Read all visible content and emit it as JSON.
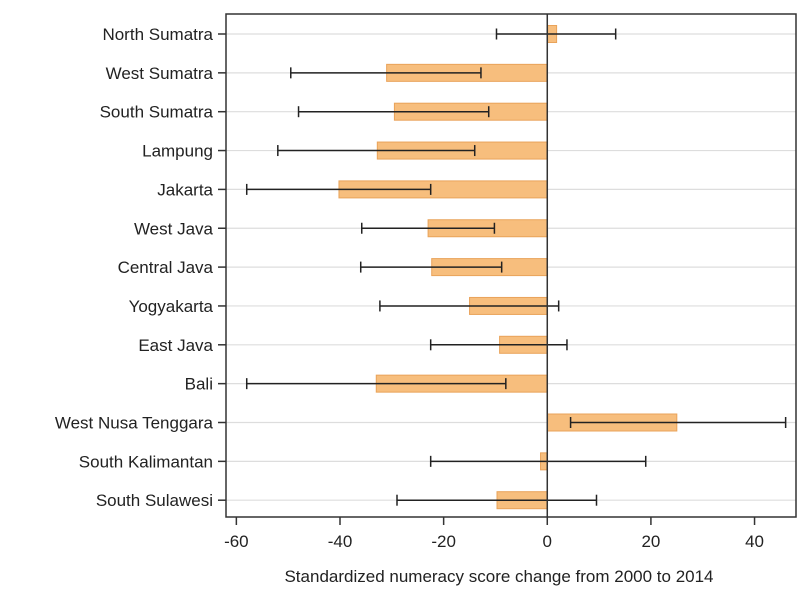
{
  "chart_data": {
    "type": "bar",
    "orientation": "horizontal",
    "xlabel": "Standardized numeracy score change from 2000 to 2014",
    "ylabel": "",
    "xlim": [
      -62,
      48
    ],
    "xticks": [
      -60,
      -40,
      -20,
      0,
      20,
      40
    ],
    "grid": true,
    "bar_color": "#f7be7d",
    "bar_edge_color": "#e9a35a",
    "categories": [
      "North Sumatra",
      "West Sumatra",
      "South Sumatra",
      "Lampung",
      "Jakarta",
      "West Java",
      "Central Java",
      "Yogyakarta",
      "East Java",
      "Bali",
      "West Nusa Tenggara",
      "South Kalimantan",
      "South Sulawesi"
    ],
    "values": [
      1.8,
      -31,
      -29.5,
      -32.8,
      -40.2,
      -23,
      -22.3,
      -15,
      -9.2,
      -33,
      25,
      -1.3,
      -9.7
    ],
    "ci_low": [
      -9.8,
      -49.5,
      -48,
      -52,
      -58,
      -35.8,
      -36,
      -32.3,
      -22.5,
      -58,
      4.5,
      -22.5,
      -29
    ],
    "ci_high": [
      13.2,
      -12.8,
      -11.3,
      -14,
      -22.5,
      -10.2,
      -8.8,
      2.2,
      3.8,
      -8,
      46,
      19,
      9.5
    ]
  }
}
